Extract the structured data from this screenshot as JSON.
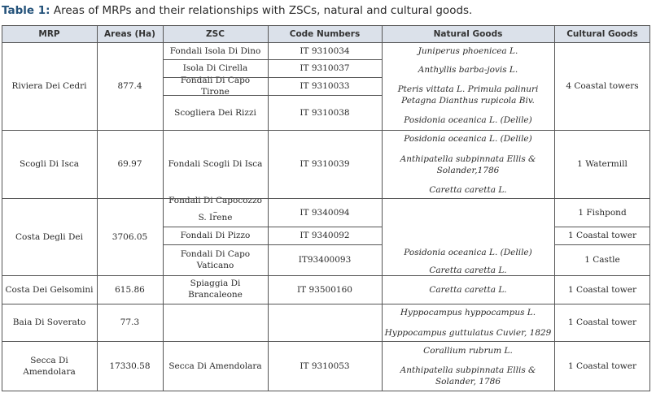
{
  "caption": {
    "label": "Table 1:",
    "text": "Areas of MRPs and their relationships with ZSCs, natural and cultural goods."
  },
  "headers": {
    "mrp": "MRP",
    "area": "Areas (Ha)",
    "zsc": "ZSC",
    "code": "Code Numbers",
    "natural": "Natural Goods",
    "cultural": "Cultural Goods"
  },
  "rows": {
    "r1": {
      "mrp": "Riviera Dei Cedri",
      "area": "877.4",
      "zsc1": "Fondali Isola Di Dino",
      "code1": "IT 9310034",
      "zsc2": "Isola Di Cirella",
      "code2": "IT 9310037",
      "zsc3": "Fondali Di Capo Tirone",
      "code3": "IT 9310033",
      "zsc4": "Scogliera Dei Rizzi",
      "code4": "IT 9310038",
      "nat1": "Juniperus phoenicea L.",
      "nat2": "Anthyllis barba-jovis L.",
      "nat3": "Pteris vittata L. Primula palinuri",
      "nat4": "Petagna Dianthus rupicola Biv.",
      "nat5": "Posidonia oceanica L. (Delile)",
      "cult": "4 Coastal towers"
    },
    "r2": {
      "mrp": "Scogli Di Isca",
      "area": "69.97",
      "zsc": "Fondali Scogli Di Isca",
      "code": "IT 9310039",
      "nat1": "Posidonia oceanica L. (Delile)",
      "nat2a": "Anthipatella subpinnata Ellis &",
      "nat2b": "Solander,1786",
      "nat3": "Caretta caretta L.",
      "cult": "1 Watermill"
    },
    "r3": {
      "mrp": "Costa Degli Dei",
      "area": "3706.05",
      "zsc1a": "Fondali Di Capocozzo –",
      "zsc1b": "S. Irene",
      "code1": "IT 9340094",
      "zsc2": "Fondali Di Pizzo",
      "code2": "IT 9340092",
      "zsc3a": "Fondali Di Capo",
      "zsc3b": "Vaticano",
      "code3": "IT93400093",
      "nat1": "Posidonia oceanica L. (Delile)",
      "nat2": "Caretta caretta L.",
      "cult1": "1 Fishpond",
      "cult2": "1 Coastal tower",
      "cult3": "1 Castle"
    },
    "r4": {
      "mrp": "Costa Dei Gelsomini",
      "area": "615.86",
      "zsc_a": "Spiaggia Di",
      "zsc_b": "Brancaleone",
      "code": "IT 93500160",
      "nat": "Caretta caretta L.",
      "cult": "1 Coastal tower"
    },
    "r5": {
      "mrp": "Baia Di Soverato",
      "area": "77.3",
      "nat1": "Hyppocampus hyppocampus L.",
      "nat2": "Hyppocampus guttulatus Cuvier, 1829",
      "cult": "1 Coastal tower"
    },
    "r6": {
      "mrp_a": "Secca Di",
      "mrp_b": "Amendolara",
      "area": "17330.58",
      "zsc": "Secca Di Amendolara",
      "code": "IT 9310053",
      "nat1": "Corallium rubrum L.",
      "nat2a": "Anthipatella subpinnata Ellis &",
      "nat2b": "Solander, 1786",
      "cult": "1 Coastal tower"
    }
  },
  "colors": {
    "caption_label": "#24527a",
    "header_bg": "#dbe1ea",
    "border": "#555555"
  }
}
